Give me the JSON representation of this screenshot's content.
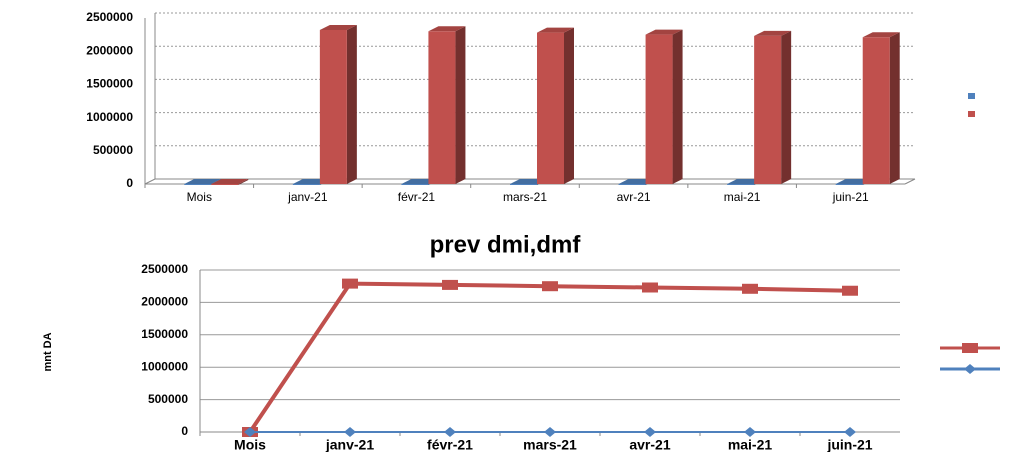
{
  "chart_data": [
    {
      "type": "bar",
      "categories": [
        "Mois",
        "janv-21",
        "févr-21",
        "mars-21",
        "avr-21",
        "mai-21",
        "juin-21"
      ],
      "series": [
        {
          "color": "#4f81bd",
          "values": [
            0,
            0,
            0,
            0,
            0,
            0,
            0
          ]
        },
        {
          "color": "#c0504d",
          "values": [
            0,
            2320000,
            2300000,
            2280000,
            2250000,
            2230000,
            2210000
          ]
        }
      ],
      "ylim": [
        0,
        2500000
      ],
      "yticks": [
        0,
        500000,
        1000000,
        1500000,
        2000000,
        2500000
      ],
      "grid": true
    },
    {
      "type": "line",
      "title": "prev dmi,dmf",
      "y_label": "mnt DA",
      "categories": [
        "Mois",
        "janv-21",
        "févr-21",
        "mars-21",
        "avr-21",
        "mai-21",
        "juin-21"
      ],
      "series": [
        {
          "color": "#c0504d",
          "marker": "square",
          "values": [
            0,
            2290000,
            2270000,
            2250000,
            2230000,
            2210000,
            2180000
          ]
        },
        {
          "color": "#4f81bd",
          "marker": "diamond",
          "values": [
            0,
            0,
            0,
            0,
            0,
            0,
            0
          ]
        }
      ],
      "ylim": [
        0,
        2500000
      ],
      "yticks": [
        0,
        500000,
        1000000,
        1500000,
        2000000,
        2500000
      ],
      "grid": true
    }
  ]
}
